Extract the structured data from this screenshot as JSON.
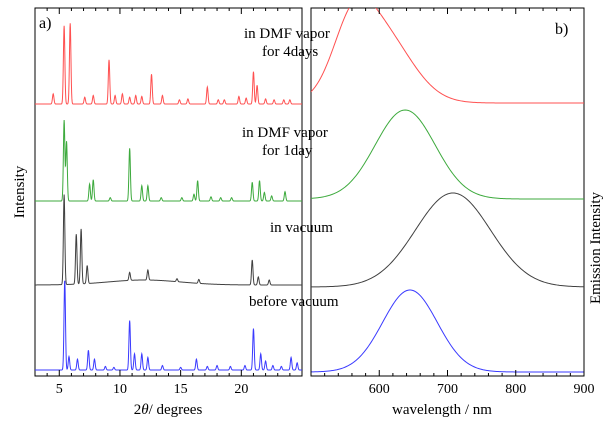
{
  "chart_data": [
    {
      "panel": "a)",
      "type": "line",
      "xlabel_prefix": "2",
      "xlabel_theta": "θ",
      "xlabel_suffix": "/ degrees",
      "ylabel": "Intensity",
      "xlim": [
        3,
        25
      ],
      "xticks": [
        "5",
        "10",
        "15",
        "20"
      ],
      "grid": false,
      "series": [
        {
          "name": "before vacuum",
          "color": "#3a3aff",
          "peaks": [
            [
              5.45,
              1.0
            ],
            [
              5.8,
              0.15
            ],
            [
              6.5,
              0.12
            ],
            [
              7.4,
              0.22
            ],
            [
              7.9,
              0.12
            ],
            [
              8.8,
              0.04
            ],
            [
              9.5,
              0.03
            ],
            [
              10.8,
              0.55
            ],
            [
              11.2,
              0.18
            ],
            [
              11.8,
              0.18
            ],
            [
              12.3,
              0.14
            ],
            [
              13.5,
              0.05
            ],
            [
              15.0,
              0.03
            ],
            [
              16.3,
              0.12
            ],
            [
              17.2,
              0.04
            ],
            [
              18.0,
              0.05
            ],
            [
              19.1,
              0.04
            ],
            [
              20.3,
              0.05
            ],
            [
              21.0,
              0.46
            ],
            [
              21.6,
              0.18
            ],
            [
              22.0,
              0.1
            ],
            [
              22.6,
              0.05
            ],
            [
              23.3,
              0.04
            ],
            [
              24.1,
              0.14
            ],
            [
              24.6,
              0.08
            ]
          ]
        },
        {
          "name": "in vacuum",
          "color": "#404040",
          "peaks": [
            [
              5.4,
              0.9
            ],
            [
              6.4,
              0.5
            ],
            [
              6.8,
              0.55
            ],
            [
              7.3,
              0.18
            ],
            [
              10.8,
              0.08
            ],
            [
              12.3,
              0.1
            ],
            [
              14.7,
              0.03
            ],
            [
              16.5,
              0.04
            ],
            [
              20.9,
              0.25
            ],
            [
              21.4,
              0.08
            ],
            [
              22.3,
              0.05
            ]
          ]
        },
        {
          "name": "in DMF vapor for 1day",
          "color": "#3daa3d",
          "peaks": [
            [
              5.4,
              0.95
            ],
            [
              5.6,
              0.7
            ],
            [
              7.5,
              0.2
            ],
            [
              7.8,
              0.25
            ],
            [
              9.2,
              0.04
            ],
            [
              10.8,
              0.62
            ],
            [
              11.8,
              0.18
            ],
            [
              12.3,
              0.18
            ],
            [
              13.4,
              0.04
            ],
            [
              15.1,
              0.04
            ],
            [
              16.1,
              0.08
            ],
            [
              16.4,
              0.24
            ],
            [
              17.5,
              0.05
            ],
            [
              18.3,
              0.04
            ],
            [
              19.2,
              0.04
            ],
            [
              20.9,
              0.22
            ],
            [
              21.5,
              0.24
            ],
            [
              21.9,
              0.1
            ],
            [
              22.5,
              0.06
            ],
            [
              23.6,
              0.11
            ]
          ]
        },
        {
          "name": "in DMF vapor for 4days",
          "color": "#ff5050",
          "peaks": [
            [
              4.5,
              0.12
            ],
            [
              5.4,
              0.92
            ],
            [
              5.9,
              0.95
            ],
            [
              7.1,
              0.08
            ],
            [
              7.8,
              0.1
            ],
            [
              9.1,
              0.52
            ],
            [
              9.6,
              0.1
            ],
            [
              10.2,
              0.12
            ],
            [
              10.8,
              0.08
            ],
            [
              11.3,
              0.1
            ],
            [
              11.8,
              0.09
            ],
            [
              12.6,
              0.35
            ],
            [
              13.5,
              0.1
            ],
            [
              14.9,
              0.05
            ],
            [
              15.6,
              0.06
            ],
            [
              17.2,
              0.2
            ],
            [
              18.1,
              0.05
            ],
            [
              18.6,
              0.05
            ],
            [
              19.8,
              0.09
            ],
            [
              20.4,
              0.07
            ],
            [
              21.0,
              0.38
            ],
            [
              21.3,
              0.22
            ],
            [
              22.0,
              0.06
            ],
            [
              22.7,
              0.05
            ],
            [
              23.5,
              0.05
            ],
            [
              24.0,
              0.05
            ]
          ]
        }
      ]
    },
    {
      "panel": "b)",
      "type": "line",
      "xlabel": "wavelength / nm",
      "ylabel": "Emission Intensity",
      "xlim": [
        500,
        900
      ],
      "xticks": [
        "600",
        "700",
        "800",
        "900"
      ],
      "grid": false,
      "series": [
        {
          "name": "before vacuum",
          "color": "#3a3aff",
          "peak_nm": 645
        },
        {
          "name": "in vacuum",
          "color": "#404040",
          "peak_nm": 708
        },
        {
          "name": "in DMF vapor for 1day",
          "color": "#3daa3d",
          "peak_nm": 638
        },
        {
          "name": "in DMF vapor for 4days",
          "color": "#ff5050",
          "peak_nm": 600,
          "shoulder_nm": 560
        }
      ]
    }
  ],
  "annotations": {
    "dmf4_line1": "in DMF vapor",
    "dmf4_line2": "for 4days",
    "dmf1_line1": "in DMF vapor",
    "dmf1_line2": "for 1day",
    "vacuum": "in vacuum",
    "before": "before vacuum"
  }
}
